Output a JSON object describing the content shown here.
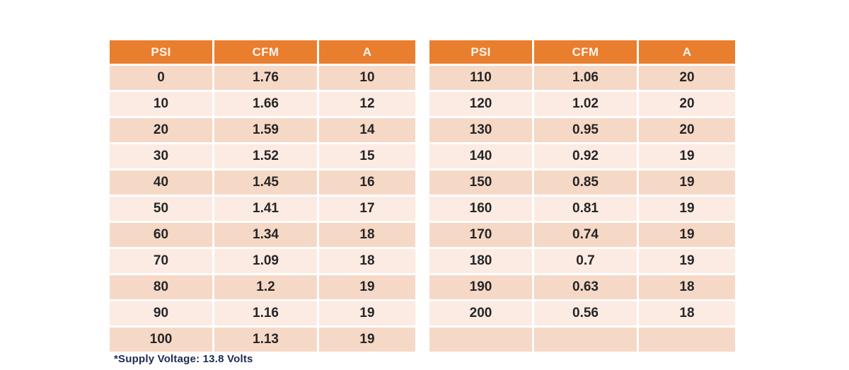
{
  "colors": {
    "page_bg": "#ffffff",
    "header_bg": "#e87e2e",
    "header_text": "#fdf5ed",
    "row_dark": "#f6d8c7",
    "row_light": "#fcebe3",
    "cell_text": "#262626",
    "footnote": "#1c2b52"
  },
  "tables": [
    {
      "name": "left",
      "headers": [
        "PSI",
        "CFM",
        "A"
      ],
      "rows": [
        [
          "0",
          "1.76",
          "10"
        ],
        [
          "10",
          "1.66",
          "12"
        ],
        [
          "20",
          "1.59",
          "14"
        ],
        [
          "30",
          "1.52",
          "15"
        ],
        [
          "40",
          "1.45",
          "16"
        ],
        [
          "50",
          "1.41",
          "17"
        ],
        [
          "60",
          "1.34",
          "18"
        ],
        [
          "70",
          "1.09",
          "18"
        ],
        [
          "80",
          "1.2",
          "19"
        ],
        [
          "90",
          "1.16",
          "19"
        ],
        [
          "100",
          "1.13",
          "19"
        ]
      ]
    },
    {
      "name": "right",
      "headers": [
        "PSI",
        "CFM",
        "A"
      ],
      "rows": [
        [
          "110",
          "1.06",
          "20"
        ],
        [
          "120",
          "1.02",
          "20"
        ],
        [
          "130",
          "0.95",
          "20"
        ],
        [
          "140",
          "0.92",
          "19"
        ],
        [
          "150",
          "0.85",
          "19"
        ],
        [
          "160",
          "0.81",
          "19"
        ],
        [
          "170",
          "0.74",
          "19"
        ],
        [
          "180",
          "0.7",
          "19"
        ],
        [
          "190",
          "0.63",
          "18"
        ],
        [
          "200",
          "0.56",
          "18"
        ],
        [
          "",
          "",
          ""
        ]
      ]
    }
  ],
  "footnote": {
    "text": "*Supply Voltage: 13.8 Volts"
  },
  "chart_data": {
    "type": "table",
    "title": "",
    "columns": [
      "PSI",
      "CFM",
      "A"
    ],
    "rows": [
      [
        0,
        1.76,
        10
      ],
      [
        10,
        1.66,
        12
      ],
      [
        20,
        1.59,
        14
      ],
      [
        30,
        1.52,
        15
      ],
      [
        40,
        1.45,
        16
      ],
      [
        50,
        1.41,
        17
      ],
      [
        60,
        1.34,
        18
      ],
      [
        70,
        1.09,
        18
      ],
      [
        80,
        1.2,
        19
      ],
      [
        90,
        1.16,
        19
      ],
      [
        100,
        1.13,
        19
      ],
      [
        110,
        1.06,
        20
      ],
      [
        120,
        1.02,
        20
      ],
      [
        130,
        0.95,
        20
      ],
      [
        140,
        0.92,
        19
      ],
      [
        150,
        0.85,
        19
      ],
      [
        160,
        0.81,
        19
      ],
      [
        170,
        0.74,
        19
      ],
      [
        180,
        0.7,
        19
      ],
      [
        190,
        0.63,
        18
      ],
      [
        200,
        0.56,
        18
      ]
    ],
    "annotations": [
      "*Supply Voltage: 13.8 Volts"
    ],
    "layout": "split into two side-by-side tables: PSI 0-100 (left), PSI 110-200 (right, with one trailing empty row); header row orange, data rows alternate dark/light peach starting dark"
  }
}
